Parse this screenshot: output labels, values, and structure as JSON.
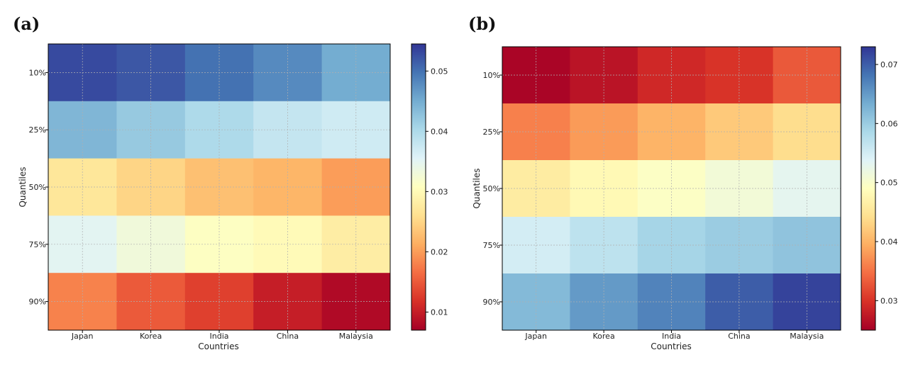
{
  "chart_data": [
    {
      "type": "heatmap",
      "panel_label": "(a)",
      "title": "",
      "xlabel": "Countries",
      "ylabel": "Quantiles",
      "x_categories": [
        "Japan",
        "Korea",
        "India",
        "China",
        "Malaysia"
      ],
      "y_categories": [
        "10%",
        "25%",
        "50%",
        "75%",
        "90%"
      ],
      "values": [
        [
          0.053,
          0.052,
          0.05,
          0.048,
          0.045
        ],
        [
          0.044,
          0.042,
          0.04,
          0.038,
          0.037
        ],
        [
          0.027,
          0.025,
          0.023,
          0.022,
          0.02
        ],
        [
          0.035,
          0.033,
          0.031,
          0.03,
          0.028
        ],
        [
          0.018,
          0.015,
          0.013,
          0.01,
          0.008
        ]
      ],
      "colorbar": {
        "min": 0.007,
        "max": 0.0545,
        "ticks": [
          "0.01",
          "0.02",
          "0.03",
          "0.04",
          "0.05"
        ]
      },
      "colormap": "RdYlBu",
      "grid": true
    },
    {
      "type": "heatmap",
      "panel_label": "(b)",
      "title": "",
      "xlabel": "Countries",
      "ylabel": "Quantiles",
      "x_categories": [
        "Japan",
        "Korea",
        "India",
        "China",
        "Malaysia"
      ],
      "y_categories": [
        "10%",
        "25%",
        "50%",
        "75%",
        "90%"
      ],
      "values": [
        [
          0.0255,
          0.027,
          0.029,
          0.03,
          0.033
        ],
        [
          0.036,
          0.038,
          0.04,
          0.042,
          0.044
        ],
        [
          0.046,
          0.048,
          0.0495,
          0.051,
          0.053
        ],
        [
          0.055,
          0.057,
          0.059,
          0.06,
          0.061
        ],
        [
          0.062,
          0.065,
          0.067,
          0.07,
          0.072
        ]
      ],
      "colorbar": {
        "min": 0.025,
        "max": 0.073,
        "ticks": [
          "0.03",
          "0.04",
          "0.05",
          "0.06",
          "0.07"
        ]
      },
      "colormap": "RdYlBu",
      "grid": true
    }
  ]
}
